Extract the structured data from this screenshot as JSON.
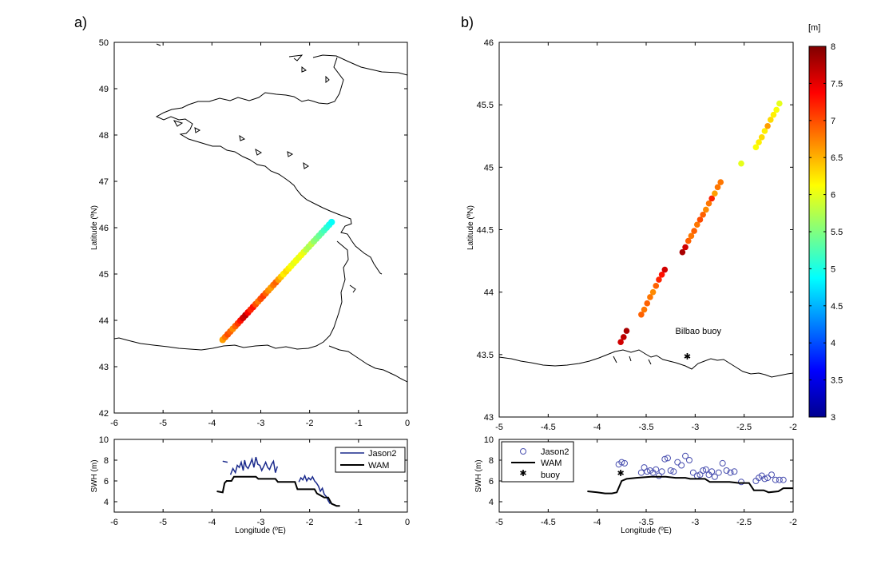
{
  "colors": {
    "coast": "#000000",
    "jason_line": "#1a2a8c",
    "jason_marker": "#4a50b0",
    "wam": "#000000",
    "colormap": [
      "#00008f",
      "#0000ff",
      "#0080ff",
      "#00ffff",
      "#80ff80",
      "#ffff00",
      "#ff8000",
      "#ff0000",
      "#800000"
    ]
  },
  "chart_data": [
    {
      "id": "map_a",
      "panel_label": "a)",
      "type": "scatter",
      "title": "",
      "xlabel": "",
      "ylabel": "Latitude (ºN)",
      "xlim": [
        -6,
        0
      ],
      "ylim": [
        42,
        50
      ],
      "xticks": [
        "-6",
        "-5",
        "-4",
        "-3",
        "-2",
        "-1",
        "0"
      ],
      "yticks": [
        "42",
        "43",
        "44",
        "45",
        "46",
        "47",
        "48",
        "49",
        "50"
      ],
      "track": {
        "start": [
          -3.78,
          43.58
        ],
        "end": [
          -1.55,
          46.12
        ],
        "n": 44
      },
      "swh": [
        6.6,
        6.8,
        7.0,
        6.9,
        6.7,
        6.9,
        7.1,
        7.3,
        7.6,
        7.7,
        7.4,
        7.2,
        7.3,
        7.0,
        6.8,
        7.0,
        7.1,
        6.9,
        6.7,
        6.6,
        6.8,
        6.9,
        6.6,
        6.4,
        6.2,
        6.3,
        6.2,
        6.1,
        6.0,
        6.1,
        6.0,
        6.1,
        6.0,
        5.8,
        5.7,
        5.8,
        5.6,
        5.5,
        5.4,
        5.3,
        5.2,
        5.1,
        5.0,
        4.9
      ]
    },
    {
      "id": "map_b",
      "panel_label": "b)",
      "type": "scatter",
      "title": "",
      "xlabel": "",
      "ylabel": "Latitude (ºN)",
      "xlim": [
        -5,
        -2
      ],
      "ylim": [
        43,
        46
      ],
      "xticks": [
        "-5",
        "-4.5",
        "-4",
        "-3.5",
        "-3",
        "-2.5",
        "-2"
      ],
      "yticks": [
        "43",
        "43.5",
        "44",
        "44.5",
        "45",
        "45.5",
        "46"
      ],
      "colorbar": {
        "label": "[m]",
        "range": [
          3,
          8
        ],
        "ticks": [
          "3",
          "3.5",
          "4",
          "4.5",
          "5",
          "5.5",
          "6",
          "6.5",
          "7",
          "7.5",
          "8"
        ]
      },
      "annotation": {
        "text": "Bilbao buoy",
        "lon": -3.08,
        "lat": 43.48
      },
      "points": [
        {
          "lon": -3.76,
          "lat": 43.6,
          "v": 7.6
        },
        {
          "lon": -3.73,
          "lat": 43.64,
          "v": 7.7
        },
        {
          "lon": -3.7,
          "lat": 43.69,
          "v": 7.8
        },
        {
          "lon": -3.55,
          "lat": 43.82,
          "v": 6.9
        },
        {
          "lon": -3.52,
          "lat": 43.86,
          "v": 6.8
        },
        {
          "lon": -3.49,
          "lat": 43.91,
          "v": 6.9
        },
        {
          "lon": -3.46,
          "lat": 43.96,
          "v": 6.8
        },
        {
          "lon": -3.43,
          "lat": 44.0,
          "v": 6.7
        },
        {
          "lon": -3.4,
          "lat": 44.05,
          "v": 6.9
        },
        {
          "lon": -3.37,
          "lat": 44.1,
          "v": 7.2
        },
        {
          "lon": -3.34,
          "lat": 44.14,
          "v": 7.3
        },
        {
          "lon": -3.31,
          "lat": 44.18,
          "v": 7.6
        },
        {
          "lon": -3.13,
          "lat": 44.32,
          "v": 7.8
        },
        {
          "lon": -3.1,
          "lat": 44.36,
          "v": 7.6
        },
        {
          "lon": -3.07,
          "lat": 44.41,
          "v": 6.9
        },
        {
          "lon": -3.04,
          "lat": 44.45,
          "v": 6.8
        },
        {
          "lon": -3.01,
          "lat": 44.49,
          "v": 6.9
        },
        {
          "lon": -2.98,
          "lat": 44.54,
          "v": 6.8
        },
        {
          "lon": -2.95,
          "lat": 44.58,
          "v": 7.0
        },
        {
          "lon": -2.92,
          "lat": 44.62,
          "v": 6.9
        },
        {
          "lon": -2.89,
          "lat": 44.66,
          "v": 6.7
        },
        {
          "lon": -2.86,
          "lat": 44.71,
          "v": 6.8
        },
        {
          "lon": -2.83,
          "lat": 44.75,
          "v": 7.2
        },
        {
          "lon": -2.8,
          "lat": 44.79,
          "v": 6.6
        },
        {
          "lon": -2.77,
          "lat": 44.84,
          "v": 6.8
        },
        {
          "lon": -2.74,
          "lat": 44.88,
          "v": 6.8
        },
        {
          "lon": -2.53,
          "lat": 45.03,
          "v": 6.0
        },
        {
          "lon": -2.38,
          "lat": 45.16,
          "v": 6.1
        },
        {
          "lon": -2.35,
          "lat": 45.2,
          "v": 6.2
        },
        {
          "lon": -2.32,
          "lat": 45.24,
          "v": 6.3
        },
        {
          "lon": -2.29,
          "lat": 45.29,
          "v": 6.2
        },
        {
          "lon": -2.26,
          "lat": 45.33,
          "v": 6.6
        },
        {
          "lon": -2.23,
          "lat": 45.38,
          "v": 6.3
        },
        {
          "lon": -2.2,
          "lat": 45.42,
          "v": 6.2
        },
        {
          "lon": -2.17,
          "lat": 45.46,
          "v": 6.1
        },
        {
          "lon": -2.14,
          "lat": 45.51,
          "v": 6.0
        }
      ]
    },
    {
      "id": "swh_a",
      "type": "line",
      "title": "",
      "xlabel": "Longitude (ºE)",
      "ylabel": "SWH (m)",
      "xlim": [
        -6,
        0
      ],
      "ylim": [
        3,
        10
      ],
      "xticks": [
        "-6",
        "-5",
        "-4",
        "-3",
        "-2",
        "-1",
        "0"
      ],
      "yticks": [
        "4",
        "6",
        "8",
        "10"
      ],
      "legend_loc": "top-right",
      "series": [
        {
          "name": "Jason2",
          "segments": [
            [
              [
                -3.78,
                7.9
              ],
              [
                -3.68,
                7.8
              ]
            ],
            [
              [
                -3.62,
                6.6
              ],
              [
                -3.57,
                7.2
              ],
              [
                -3.52,
                6.8
              ],
              [
                -3.48,
                7.5
              ],
              [
                -3.44,
                7.3
              ],
              [
                -3.4,
                7.8
              ],
              [
                -3.36,
                7.0
              ],
              [
                -3.33,
                8.0
              ],
              [
                -3.3,
                7.4
              ],
              [
                -3.26,
                7.2
              ],
              [
                -3.22,
                7.6
              ],
              [
                -3.18,
                8.1
              ],
              [
                -3.14,
                7.3
              ],
              [
                -3.1,
                8.3
              ],
              [
                -3.06,
                7.6
              ],
              [
                -3.02,
                7.5
              ],
              [
                -2.98,
                7.0
              ],
              [
                -2.94,
                7.4
              ],
              [
                -2.9,
                7.8
              ],
              [
                -2.86,
                7.3
              ],
              [
                -2.82,
                7.1
              ],
              [
                -2.78,
                7.6
              ],
              [
                -2.74,
                7.9
              ],
              [
                -2.7,
                6.8
              ],
              [
                -2.66,
                7.4
              ]
            ],
            [
              [
                -2.22,
                5.9
              ],
              [
                -2.18,
                6.3
              ],
              [
                -2.14,
                6.1
              ],
              [
                -2.1,
                6.5
              ],
              [
                -2.06,
                6.0
              ],
              [
                -2.02,
                6.3
              ],
              [
                -1.98,
                6.1
              ],
              [
                -1.94,
                6.4
              ],
              [
                -1.9,
                6.0
              ],
              [
                -1.86,
                5.8
              ],
              [
                -1.82,
                5.5
              ],
              [
                -1.78,
                5.0
              ],
              [
                -1.74,
                5.3
              ],
              [
                -1.7,
                4.7
              ],
              [
                -1.66,
                4.5
              ],
              [
                -1.62,
                4.1
              ],
              [
                -1.58,
                3.8
              ]
            ]
          ]
        },
        {
          "name": "WAM",
          "segments": [
            [
              [
                -3.9,
                5.0
              ],
              [
                -3.78,
                4.9
              ],
              [
                -3.74,
                5.8
              ],
              [
                -3.7,
                6.0
              ],
              [
                -3.6,
                6.0
              ],
              [
                -3.55,
                6.4
              ],
              [
                -3.1,
                6.4
              ],
              [
                -3.05,
                6.2
              ],
              [
                -2.7,
                6.2
              ],
              [
                -2.65,
                5.9
              ],
              [
                -2.3,
                5.9
              ],
              [
                -2.25,
                5.2
              ],
              [
                -1.9,
                5.2
              ],
              [
                -1.85,
                4.8
              ],
              [
                -1.7,
                4.4
              ],
              [
                -1.62,
                4.4
              ],
              [
                -1.55,
                3.8
              ],
              [
                -1.45,
                3.6
              ],
              [
                -1.38,
                3.6
              ]
            ]
          ]
        }
      ]
    },
    {
      "id": "swh_b",
      "type": "line",
      "title": "",
      "xlabel": "Longitude (ºE)",
      "ylabel": "SWH (m)",
      "xlim": [
        -5,
        -2
      ],
      "ylim": [
        3,
        10
      ],
      "xticks": [
        "-5",
        "-4.5",
        "-4",
        "-3.5",
        "-3",
        "-2.5",
        "-2"
      ],
      "yticks": [
        "4",
        "6",
        "8",
        "10"
      ],
      "legend_loc": "top-left",
      "series": [
        {
          "name": "Jason2",
          "marker": "circle",
          "points": [
            [
              -3.78,
              7.6
            ],
            [
              -3.75,
              7.8
            ],
            [
              -3.72,
              7.7
            ],
            [
              -3.55,
              6.8
            ],
            [
              -3.52,
              7.3
            ],
            [
              -3.49,
              6.9
            ],
            [
              -3.46,
              7.0
            ],
            [
              -3.43,
              6.8
            ],
            [
              -3.4,
              7.1
            ],
            [
              -3.37,
              6.5
            ],
            [
              -3.34,
              6.9
            ],
            [
              -3.31,
              8.1
            ],
            [
              -3.28,
              8.2
            ],
            [
              -3.25,
              7.0
            ],
            [
              -3.22,
              6.9
            ],
            [
              -3.18,
              7.8
            ],
            [
              -3.14,
              7.5
            ],
            [
              -3.1,
              8.4
            ],
            [
              -3.06,
              8.0
            ],
            [
              -3.02,
              6.8
            ],
            [
              -2.98,
              6.5
            ],
            [
              -2.95,
              6.6
            ],
            [
              -2.92,
              7.0
            ],
            [
              -2.89,
              7.1
            ],
            [
              -2.86,
              6.6
            ],
            [
              -2.83,
              6.9
            ],
            [
              -2.8,
              6.4
            ],
            [
              -2.76,
              6.8
            ],
            [
              -2.72,
              7.7
            ],
            [
              -2.68,
              7.0
            ],
            [
              -2.64,
              6.8
            ],
            [
              -2.6,
              6.9
            ],
            [
              -2.53,
              5.9
            ],
            [
              -2.38,
              6.0
            ],
            [
              -2.35,
              6.3
            ],
            [
              -2.32,
              6.5
            ],
            [
              -2.29,
              6.2
            ],
            [
              -2.26,
              6.3
            ],
            [
              -2.22,
              6.6
            ],
            [
              -2.18,
              6.1
            ],
            [
              -2.14,
              6.1
            ],
            [
              -2.1,
              6.1
            ]
          ]
        },
        {
          "name": "WAM",
          "segments": [
            [
              [
                -4.1,
                5.0
              ],
              [
                -4.0,
                4.9
              ],
              [
                -3.92,
                4.8
              ],
              [
                -3.85,
                4.8
              ],
              [
                -3.8,
                4.9
              ],
              [
                -3.75,
                6.0
              ],
              [
                -3.7,
                6.2
              ],
              [
                -3.6,
                6.3
              ],
              [
                -3.45,
                6.4
              ],
              [
                -3.3,
                6.4
              ],
              [
                -3.2,
                6.3
              ],
              [
                -3.1,
                6.3
              ],
              [
                -3.05,
                6.2
              ],
              [
                -2.9,
                6.2
              ],
              [
                -2.85,
                5.9
              ],
              [
                -2.65,
                5.9
              ],
              [
                -2.55,
                5.8
              ],
              [
                -2.45,
                5.8
              ],
              [
                -2.4,
                5.1
              ],
              [
                -2.3,
                5.1
              ],
              [
                -2.25,
                4.9
              ],
              [
                -2.15,
                5.0
              ],
              [
                -2.1,
                5.3
              ],
              [
                -2.0,
                5.3
              ]
            ]
          ]
        },
        {
          "name": "buoy",
          "marker": "star",
          "points": [
            [
              -3.76,
              6.7
            ]
          ]
        }
      ]
    }
  ]
}
